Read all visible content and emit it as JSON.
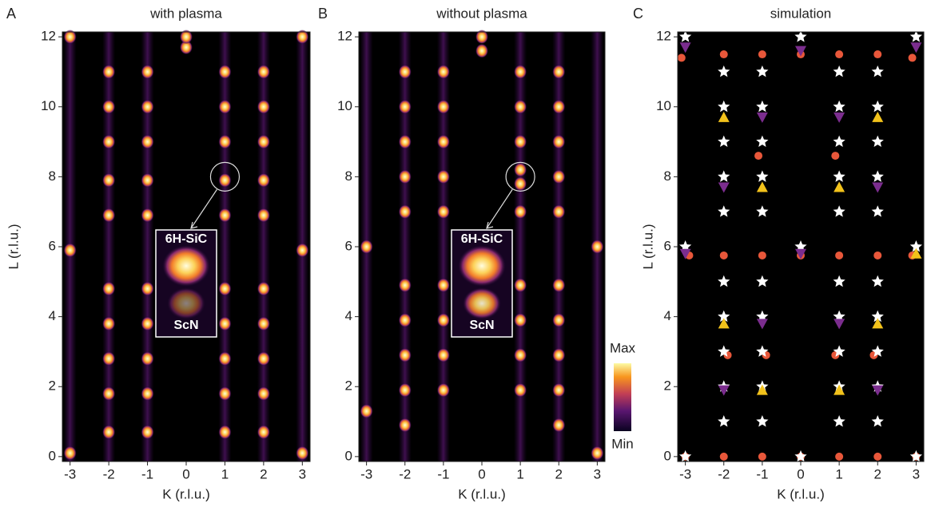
{
  "chart_data": [
    {
      "type": "peakmap",
      "panel": "A",
      "title": "with plasma",
      "xlabel": "K (r.l.u.)",
      "ylabel": "L (r.l.u.)",
      "xlim": [
        -3.2,
        3.2
      ],
      "ylim": [
        -0.14,
        12.14
      ],
      "xticks": [
        -3,
        -2,
        -1,
        0,
        1,
        2,
        3
      ],
      "yticks": [
        0,
        2,
        4,
        6,
        8,
        10,
        12
      ],
      "inset_labels": [
        "6H-SiC",
        "ScN"
      ],
      "series": [
        {
          "x": [
            -2,
            -2,
            -2,
            -2,
            -2,
            -2,
            -2,
            -2,
            -2,
            -2,
            -1,
            -1,
            -1,
            -1,
            -1,
            -1,
            -1,
            -1,
            -1,
            -1,
            1,
            1,
            1,
            1,
            1,
            1,
            1,
            1,
            1,
            1,
            2,
            2,
            2,
            2,
            2,
            2,
            2,
            2,
            2,
            2,
            0,
            0,
            -3,
            -3,
            -3,
            3,
            3,
            3
          ],
          "y": [
            0.7,
            1.8,
            2.8,
            3.8,
            4.8,
            6.9,
            7.9,
            9.0,
            10.0,
            11.0,
            0.7,
            1.8,
            2.8,
            3.8,
            4.8,
            6.9,
            7.9,
            9.0,
            10.0,
            11.0,
            0.7,
            1.8,
            2.8,
            3.8,
            4.8,
            6.9,
            7.9,
            9.0,
            10.0,
            11.0,
            0.7,
            1.8,
            2.8,
            3.8,
            4.8,
            6.9,
            7.9,
            9.0,
            10.0,
            11.0,
            11.7,
            12.0,
            0.1,
            5.9,
            12.0,
            0.1,
            5.9,
            12.0
          ]
        }
      ]
    },
    {
      "type": "peakmap",
      "panel": "B",
      "title": "without plasma",
      "xlabel": "K (r.l.u.)",
      "xlim": [
        -3.2,
        3.2
      ],
      "ylim": [
        -0.14,
        12.14
      ],
      "xticks": [
        -3,
        -2,
        -1,
        0,
        1,
        2,
        3
      ],
      "yticks": [
        0,
        2,
        4,
        6,
        8,
        10,
        12
      ],
      "inset_labels": [
        "6H-SiC",
        "ScN"
      ],
      "colorbar": [
        "Max",
        "Min"
      ],
      "series": [
        {
          "x": [
            -2,
            -2,
            -2,
            -2,
            -2,
            -2,
            -2,
            -2,
            -2,
            -2,
            -1,
            -1,
            -1,
            -1,
            -1,
            -1,
            -1,
            -1,
            -1,
            1,
            1,
            1,
            1,
            1,
            1,
            1,
            1,
            1,
            1,
            2,
            2,
            2,
            2,
            2,
            2,
            2,
            2,
            2,
            2,
            0,
            0,
            -3,
            -3,
            3,
            3
          ],
          "y": [
            0.9,
            1.9,
            2.9,
            3.9,
            4.9,
            7.0,
            8.0,
            9.0,
            10.0,
            11.0,
            1.9,
            2.9,
            3.9,
            4.9,
            7.0,
            8.0,
            9.0,
            10.0,
            11.0,
            1.9,
            2.9,
            3.9,
            4.9,
            7.0,
            7.8,
            8.2,
            9.0,
            10.0,
            11.0,
            0.9,
            1.9,
            2.9,
            3.9,
            4.9,
            7.0,
            8.0,
            9.0,
            10.0,
            11.0,
            11.6,
            12.0,
            1.3,
            6.0,
            0.1,
            6.0
          ]
        }
      ]
    },
    {
      "type": "scatter",
      "panel": "C",
      "title": "simulation",
      "xlabel": "K (r.l.u.)",
      "ylabel": "L (r.l.u.)",
      "xlim": [
        -3.2,
        3.2
      ],
      "ylim": [
        -0.14,
        12.14
      ],
      "xticks": [
        -3,
        -2,
        -1,
        0,
        1,
        2,
        3
      ],
      "yticks": [
        0,
        2,
        4,
        6,
        8,
        10,
        12
      ],
      "series": [
        {
          "marker": "circle",
          "color": "#e8573a",
          "x": [
            -3.1,
            -2,
            -1,
            0,
            1,
            2,
            2.9,
            -1.1,
            0.9,
            -2.9,
            -2,
            -1,
            0,
            1,
            2,
            2.9,
            -1.9,
            -0.9,
            0.9,
            1.9,
            -3,
            -2,
            -1,
            0,
            1,
            2,
            3
          ],
          "y": [
            11.4,
            11.5,
            11.5,
            11.5,
            11.5,
            11.5,
            11.4,
            8.6,
            8.6,
            5.75,
            5.75,
            5.75,
            5.75,
            5.75,
            5.75,
            5.75,
            2.9,
            2.9,
            2.9,
            2.9,
            0,
            0,
            0,
            0,
            0,
            0,
            0
          ]
        },
        {
          "marker": "star",
          "color": "#ffffff",
          "x": [
            -2,
            -2,
            -2,
            -2,
            -2,
            -2,
            -2,
            -2,
            -2,
            -2,
            -1,
            -1,
            -1,
            -1,
            -1,
            -1,
            -1,
            -1,
            -1,
            -1,
            1,
            1,
            1,
            1,
            1,
            1,
            1,
            1,
            1,
            1,
            2,
            2,
            2,
            2,
            2,
            2,
            2,
            2,
            2,
            2,
            -3,
            -3,
            -3,
            0,
            0,
            0,
            3,
            3,
            3
          ],
          "y": [
            1,
            2,
            3,
            4,
            5,
            7,
            8,
            9,
            10,
            11,
            1,
            2,
            3,
            4,
            5,
            7,
            8,
            9,
            10,
            11,
            1,
            2,
            3,
            4,
            5,
            7,
            8,
            9,
            10,
            11,
            1,
            2,
            3,
            4,
            5,
            7,
            8,
            9,
            10,
            11,
            0,
            6,
            12,
            0,
            6,
            12,
            0,
            6,
            12
          ]
        },
        {
          "marker": "triangle-up",
          "color": "#f2c21b",
          "x": [
            -2,
            2,
            -1,
            1,
            -2,
            2,
            -1,
            1,
            3
          ],
          "y": [
            9.7,
            9.7,
            7.7,
            7.7,
            3.8,
            3.8,
            1.9,
            1.9,
            5.8
          ]
        },
        {
          "marker": "triangle-down",
          "color": "#7b2d8e",
          "x": [
            -3,
            0,
            3,
            -1,
            1,
            -2,
            2,
            -3,
            0,
            -1,
            1,
            -2,
            2
          ],
          "y": [
            11.7,
            11.6,
            11.7,
            9.7,
            9.7,
            7.7,
            7.7,
            5.8,
            5.8,
            3.8,
            3.8,
            1.9,
            1.9
          ]
        }
      ]
    }
  ]
}
